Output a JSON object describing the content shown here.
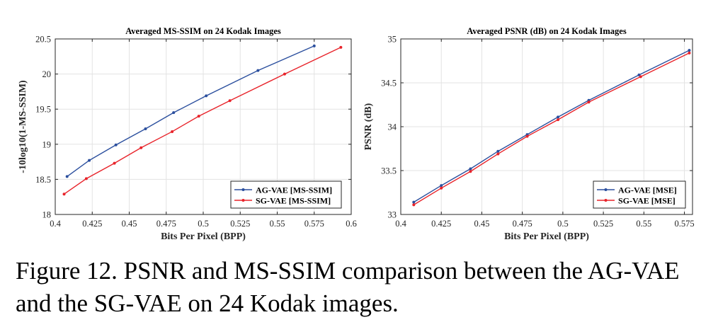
{
  "chart_data": [
    {
      "type": "line",
      "title": "Averaged MS-SSIM on 24 Kodak Images",
      "xlabel": "Bits Per Pixel (BPP)",
      "ylabel": "-10log10(1-MS-SSIM)",
      "xlim": [
        0.4,
        0.6
      ],
      "ylim": [
        18,
        20.5
      ],
      "xticks": [
        "0.4",
        "0.425",
        "0.45",
        "0.475",
        "0.5",
        "0.525",
        "0.55",
        "0.575",
        "0.6"
      ],
      "yticks": [
        "18",
        "18.5",
        "19",
        "19.5",
        "20",
        "20.5"
      ],
      "grid": true,
      "legend_position": "bottom-right",
      "series": [
        {
          "name": "AG-VAE [MS-SSIM]",
          "color": "#2b4f9e",
          "x": [
            0.408,
            0.423,
            0.441,
            0.461,
            0.48,
            0.502,
            0.537,
            0.575
          ],
          "y": [
            18.54,
            18.77,
            18.99,
            19.22,
            19.45,
            19.69,
            20.05,
            20.4
          ]
        },
        {
          "name": "SG-VAE [MS-SSIM]",
          "color": "#e8232a",
          "x": [
            0.406,
            0.421,
            0.44,
            0.458,
            0.479,
            0.497,
            0.518,
            0.555,
            0.593
          ],
          "y": [
            18.29,
            18.51,
            18.73,
            18.95,
            19.18,
            19.4,
            19.62,
            20.0,
            20.38
          ]
        }
      ]
    },
    {
      "type": "line",
      "title": "Averaged PSNR (dB) on 24 Kodak Images",
      "xlabel": "Bits Per Pixel (BPP)",
      "ylabel": "PSNR (dB)",
      "xlim": [
        0.4,
        0.58
      ],
      "ylim": [
        33,
        35
      ],
      "xticks": [
        "0.4",
        "0.425",
        "0.45",
        "0.475",
        "0.5",
        "0.525",
        "0.55",
        "0.575"
      ],
      "yticks": [
        "33",
        "33.5",
        "34",
        "34.5",
        "35"
      ],
      "grid": true,
      "legend_position": "bottom-right",
      "series": [
        {
          "name": "AG-VAE [MSE]",
          "color": "#2b4f9e",
          "x": [
            0.408,
            0.425,
            0.443,
            0.46,
            0.478,
            0.497,
            0.516,
            0.547,
            0.578
          ],
          "y": [
            33.14,
            33.33,
            33.52,
            33.72,
            33.91,
            34.11,
            34.3,
            34.59,
            34.87
          ]
        },
        {
          "name": "SG-VAE [MSE]",
          "color": "#e8232a",
          "x": [
            0.408,
            0.425,
            0.443,
            0.46,
            0.478,
            0.497,
            0.516,
            0.548,
            0.578
          ],
          "y": [
            33.11,
            33.3,
            33.49,
            33.69,
            33.89,
            34.08,
            34.28,
            34.57,
            34.84
          ]
        }
      ]
    }
  ],
  "caption": "Figure 12. PSNR and MS-SSIM comparison between the AG-VAE and the SG-VAE on 24 Kodak images."
}
